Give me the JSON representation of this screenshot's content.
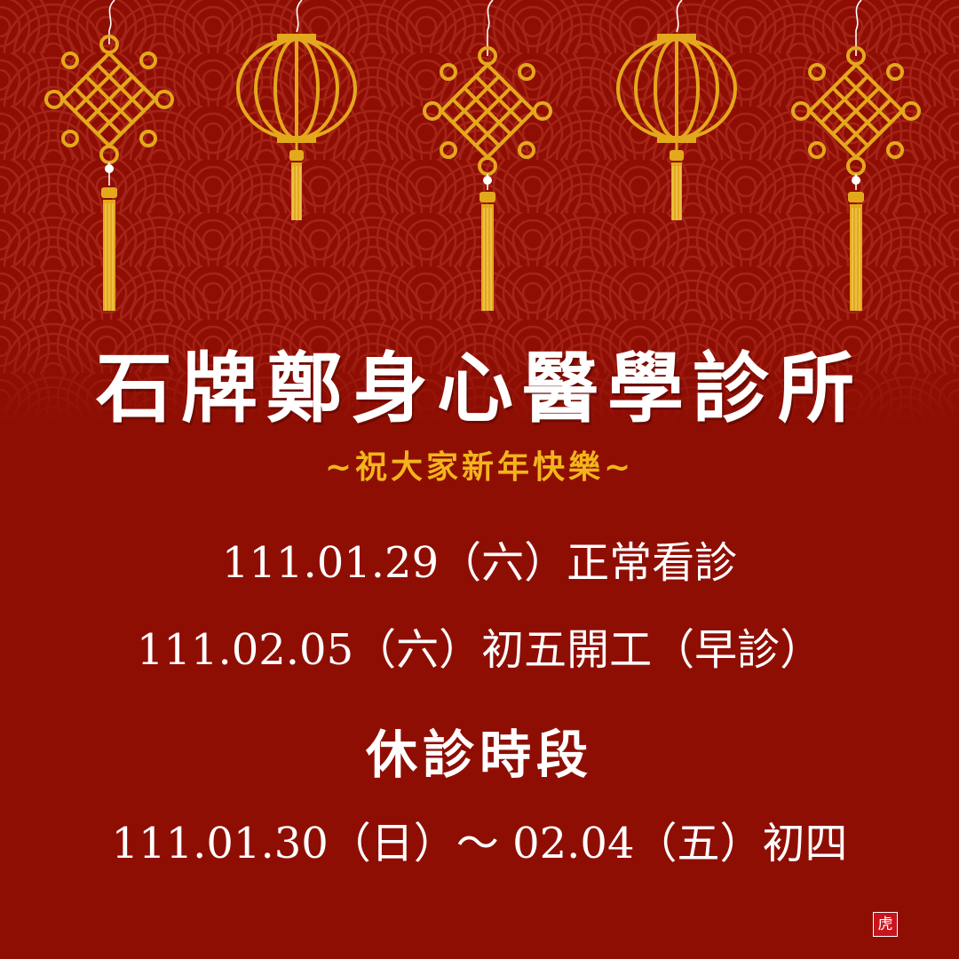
{
  "title": "石牌鄭身心醫學診所",
  "subtitle": "~祝大家新年快樂~",
  "open_days": [
    "111.01.29（六）正常看診",
    "111.02.05（六）初五開工（早診）"
  ],
  "closed": {
    "heading": "休診時段",
    "range": "111.01.30（日）～ 02.04（五）初四"
  },
  "stamp": "虎",
  "decorations": [
    "chinese-knot-icon",
    "red-lantern-icon",
    "chinese-knot-icon",
    "red-lantern-icon",
    "chinese-knot-icon"
  ],
  "colors": {
    "background": "#8f0e04",
    "gold": "#e3a81c",
    "text": "#ffffff",
    "subtitle": "#f2b41c"
  }
}
